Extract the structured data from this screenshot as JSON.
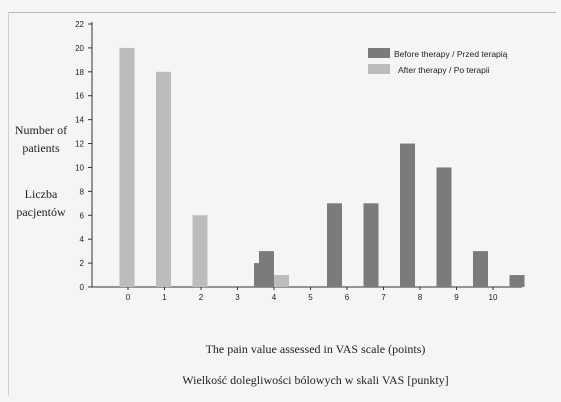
{
  "chart_data": {
    "type": "bar",
    "categories": [
      "0",
      "1",
      "2",
      "3",
      "4",
      "5",
      "6",
      "7",
      "8",
      "9",
      "10"
    ],
    "series": [
      {
        "name": "Before therapy / Przed terapią",
        "color": "#7b7b7b",
        "values": [
          0,
          0,
          0,
          2,
          3,
          7,
          7,
          12,
          10,
          3,
          1
        ]
      },
      {
        "name": "After therapy / Po terapii",
        "color": "#bcbcbc",
        "values": [
          20,
          18,
          6,
          0,
          1,
          0,
          0,
          0,
          0,
          0,
          0
        ]
      }
    ],
    "yticks": [
      0,
      2,
      4,
      6,
      8,
      10,
      12,
      14,
      16,
      18,
      20,
      22
    ],
    "ylim": [
      0,
      22
    ],
    "ylabel_en": "Number of patients",
    "ylabel_pl": "Liczba pacjentów",
    "xlabel_en": "The pain value assessed in VAS scale (points)",
    "xlabel_pl": "Wielkość dolegliwości bólowych w skali VAS [punkty]",
    "legend_position": "top-right",
    "grid": false
  }
}
